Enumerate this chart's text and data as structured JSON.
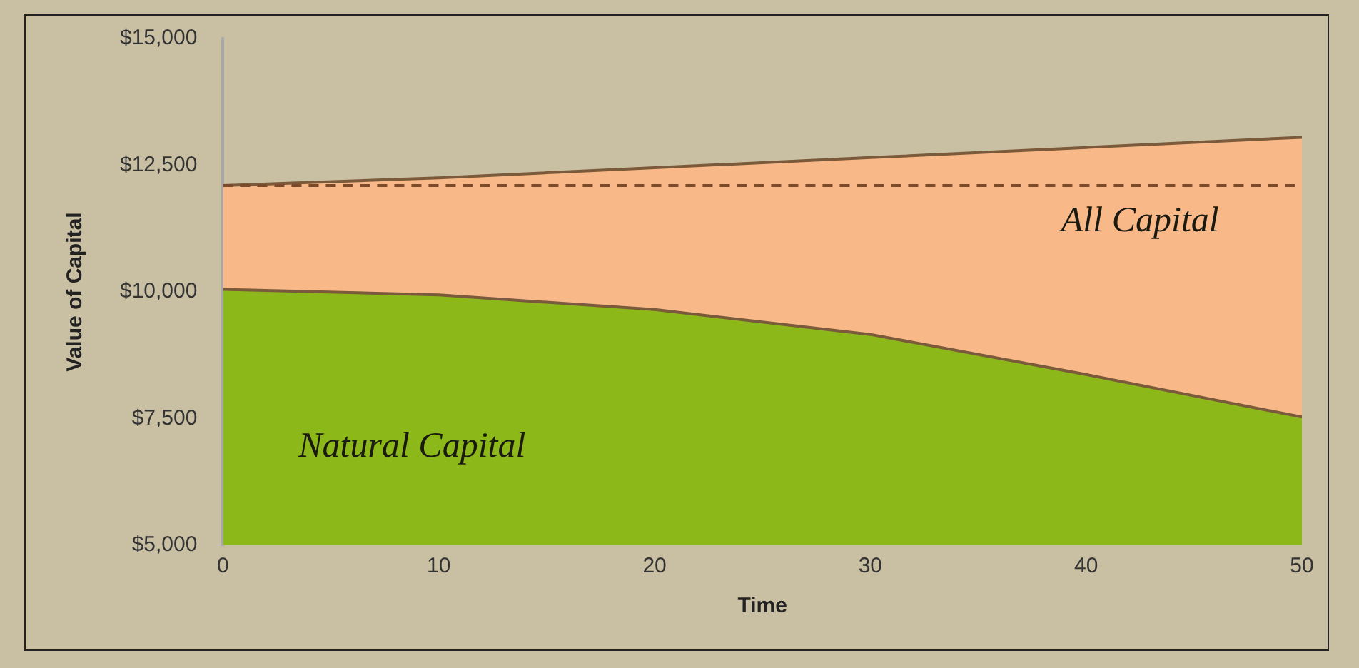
{
  "chart_data": {
    "type": "area",
    "xlabel": "Time",
    "ylabel": "Value of Capital",
    "x": [
      0,
      10,
      20,
      30,
      40,
      50
    ],
    "series": [
      {
        "name": "Natural Capital",
        "color": "#8db81a",
        "values": [
          10050,
          9940,
          9650,
          9160,
          8370,
          7530
        ]
      },
      {
        "name": "All Capital",
        "color": "#f9b887",
        "values": [
          12100,
          12250,
          12450,
          12650,
          12850,
          13050
        ]
      }
    ],
    "xlim": [
      0,
      50
    ],
    "xticks": [
      0,
      10,
      20,
      30,
      40,
      50
    ],
    "ylim": [
      5000,
      15000
    ],
    "yticks": [
      {
        "value": 5000,
        "label": "$5,000"
      },
      {
        "value": 7500,
        "label": "$7,500"
      },
      {
        "value": 10000,
        "label": "$10,000"
      },
      {
        "value": 12500,
        "label": "$12,500"
      },
      {
        "value": 15000,
        "label": "$15,000"
      }
    ],
    "ref_lines": [
      {
        "axis": "y",
        "value": 12100,
        "color": "#7a4a2a",
        "line_style": "dashed"
      }
    ],
    "grid": false,
    "legend": false
  }
}
